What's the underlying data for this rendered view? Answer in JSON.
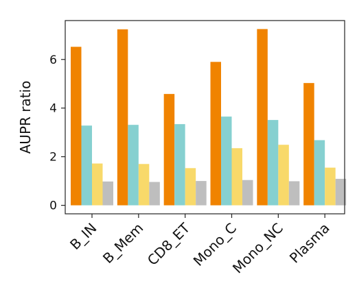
{
  "chart_data": {
    "type": "bar",
    "title": "",
    "xlabel": "",
    "ylabel": "AUPR ratio",
    "ylim": [
      -0.35,
      7.6
    ],
    "yticks": [
      0,
      2,
      4,
      6
    ],
    "grid": false,
    "categories": [
      "B_IN",
      "B_Mem",
      "CD8_ET",
      "Mono_C",
      "Mono_NC",
      "Plasma"
    ],
    "series": [
      {
        "color": "#F08300",
        "values": [
          6.52,
          7.24,
          4.58,
          5.9,
          7.25,
          5.03
        ]
      },
      {
        "color": "#86D0D0",
        "values": [
          3.28,
          3.31,
          3.34,
          3.65,
          3.51,
          2.68
        ]
      },
      {
        "color": "#F8D96A",
        "values": [
          1.72,
          1.7,
          1.53,
          2.35,
          2.49,
          1.55
        ]
      },
      {
        "color": "#BEBEBE",
        "values": [
          0.98,
          0.96,
          1.0,
          1.04,
          0.99,
          1.09
        ]
      }
    ]
  }
}
